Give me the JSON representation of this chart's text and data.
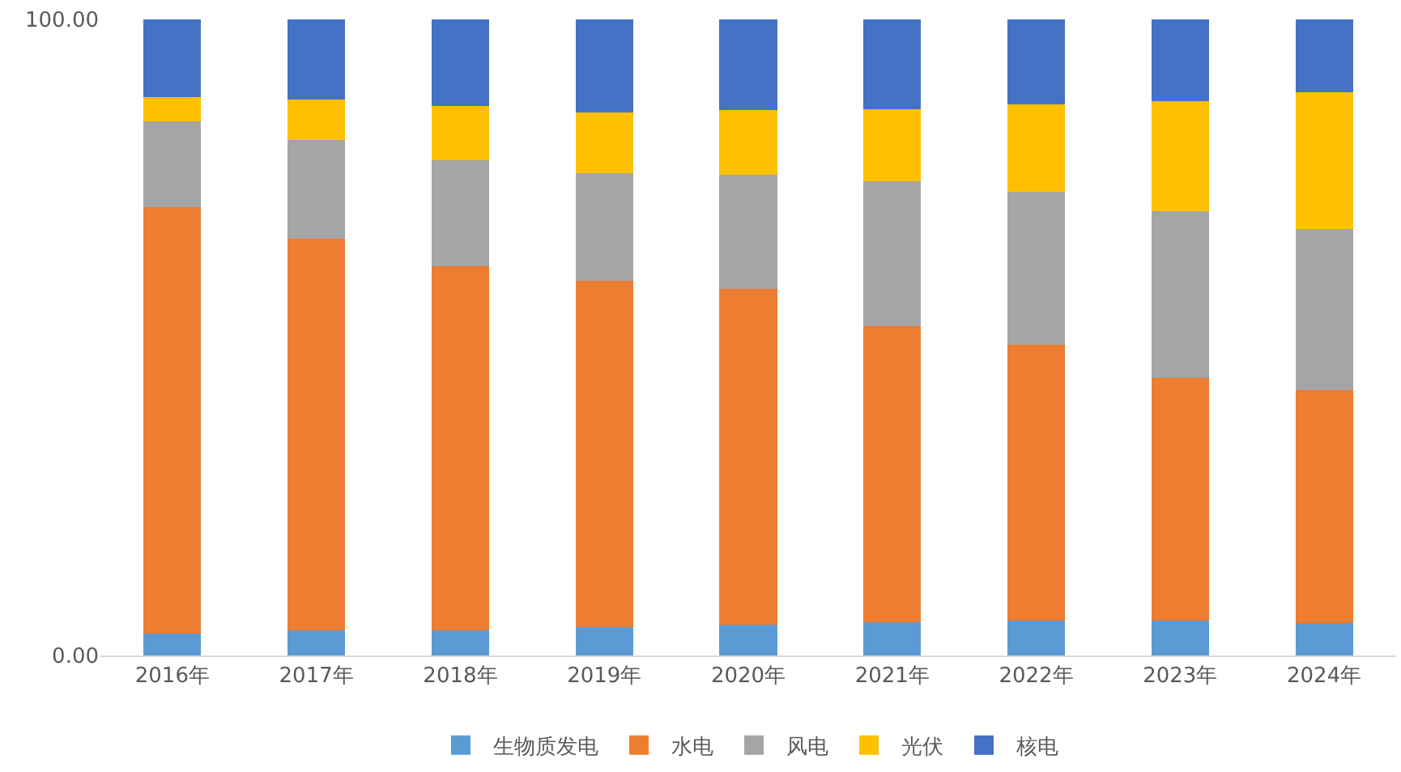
{
  "chart_data": {
    "type": "bar",
    "stacked": true,
    "categories": [
      "2016年",
      "2017年",
      "2018年",
      "2019年",
      "2020年",
      "2021年",
      "2022年",
      "2023年",
      "2024年"
    ],
    "series": [
      {
        "name": "生物质发电",
        "color": "#5b9bd5",
        "values": [
          3.5,
          4.0,
          4.0,
          4.5,
          4.8,
          5.2,
          5.5,
          5.5,
          5.1
        ]
      },
      {
        "name": "水电",
        "color": "#ed7d31",
        "values": [
          67.0,
          61.5,
          57.2,
          54.4,
          52.8,
          46.6,
          43.3,
          38.2,
          36.6
        ]
      },
      {
        "name": "风电",
        "color": "#a5a5a5",
        "values": [
          13.5,
          15.5,
          16.7,
          16.9,
          18.0,
          22.8,
          24.1,
          26.1,
          25.3
        ]
      },
      {
        "name": "光伏",
        "color": "#ffc000",
        "values": [
          3.8,
          6.4,
          8.5,
          9.6,
          10.1,
          11.3,
          13.8,
          17.3,
          21.5
        ]
      },
      {
        "name": "核电",
        "color": "#4472c4",
        "values": [
          12.2,
          12.6,
          13.6,
          14.6,
          14.3,
          14.1,
          13.3,
          12.9,
          11.5
        ]
      }
    ],
    "ylim": [
      0,
      100
    ],
    "yticks": [
      {
        "value": 0,
        "label": "0.00"
      },
      {
        "value": 100,
        "label": "100.00"
      }
    ],
    "legend": "bottom"
  }
}
